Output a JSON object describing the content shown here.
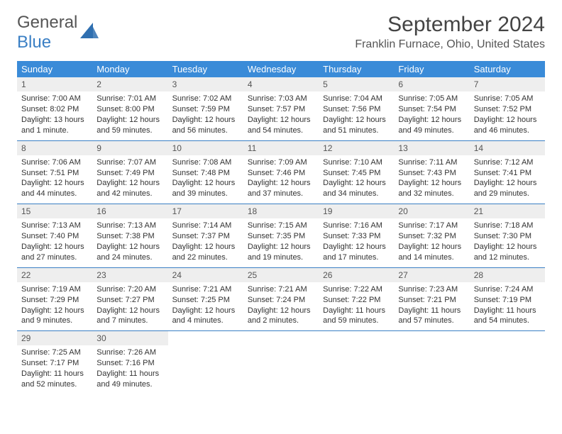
{
  "logo": {
    "top": "General",
    "bottom": "Blue",
    "icon_color": "#2f6fb0"
  },
  "header": {
    "title": "September 2024",
    "location": "Franklin Furnace, Ohio, United States"
  },
  "colors": {
    "header_bg": "#3a8bd8",
    "header_fg": "#ffffff",
    "daynum_bg": "#eeeeee",
    "border": "#3a7fc4"
  },
  "weekdays": [
    "Sunday",
    "Monday",
    "Tuesday",
    "Wednesday",
    "Thursday",
    "Friday",
    "Saturday"
  ],
  "weeks": [
    [
      {
        "num": "1",
        "sunrise": "Sunrise: 7:00 AM",
        "sunset": "Sunset: 8:02 PM",
        "daylight": "Daylight: 13 hours and 1 minute."
      },
      {
        "num": "2",
        "sunrise": "Sunrise: 7:01 AM",
        "sunset": "Sunset: 8:00 PM",
        "daylight": "Daylight: 12 hours and 59 minutes."
      },
      {
        "num": "3",
        "sunrise": "Sunrise: 7:02 AM",
        "sunset": "Sunset: 7:59 PM",
        "daylight": "Daylight: 12 hours and 56 minutes."
      },
      {
        "num": "4",
        "sunrise": "Sunrise: 7:03 AM",
        "sunset": "Sunset: 7:57 PM",
        "daylight": "Daylight: 12 hours and 54 minutes."
      },
      {
        "num": "5",
        "sunrise": "Sunrise: 7:04 AM",
        "sunset": "Sunset: 7:56 PM",
        "daylight": "Daylight: 12 hours and 51 minutes."
      },
      {
        "num": "6",
        "sunrise": "Sunrise: 7:05 AM",
        "sunset": "Sunset: 7:54 PM",
        "daylight": "Daylight: 12 hours and 49 minutes."
      },
      {
        "num": "7",
        "sunrise": "Sunrise: 7:05 AM",
        "sunset": "Sunset: 7:52 PM",
        "daylight": "Daylight: 12 hours and 46 minutes."
      }
    ],
    [
      {
        "num": "8",
        "sunrise": "Sunrise: 7:06 AM",
        "sunset": "Sunset: 7:51 PM",
        "daylight": "Daylight: 12 hours and 44 minutes."
      },
      {
        "num": "9",
        "sunrise": "Sunrise: 7:07 AM",
        "sunset": "Sunset: 7:49 PM",
        "daylight": "Daylight: 12 hours and 42 minutes."
      },
      {
        "num": "10",
        "sunrise": "Sunrise: 7:08 AM",
        "sunset": "Sunset: 7:48 PM",
        "daylight": "Daylight: 12 hours and 39 minutes."
      },
      {
        "num": "11",
        "sunrise": "Sunrise: 7:09 AM",
        "sunset": "Sunset: 7:46 PM",
        "daylight": "Daylight: 12 hours and 37 minutes."
      },
      {
        "num": "12",
        "sunrise": "Sunrise: 7:10 AM",
        "sunset": "Sunset: 7:45 PM",
        "daylight": "Daylight: 12 hours and 34 minutes."
      },
      {
        "num": "13",
        "sunrise": "Sunrise: 7:11 AM",
        "sunset": "Sunset: 7:43 PM",
        "daylight": "Daylight: 12 hours and 32 minutes."
      },
      {
        "num": "14",
        "sunrise": "Sunrise: 7:12 AM",
        "sunset": "Sunset: 7:41 PM",
        "daylight": "Daylight: 12 hours and 29 minutes."
      }
    ],
    [
      {
        "num": "15",
        "sunrise": "Sunrise: 7:13 AM",
        "sunset": "Sunset: 7:40 PM",
        "daylight": "Daylight: 12 hours and 27 minutes."
      },
      {
        "num": "16",
        "sunrise": "Sunrise: 7:13 AM",
        "sunset": "Sunset: 7:38 PM",
        "daylight": "Daylight: 12 hours and 24 minutes."
      },
      {
        "num": "17",
        "sunrise": "Sunrise: 7:14 AM",
        "sunset": "Sunset: 7:37 PM",
        "daylight": "Daylight: 12 hours and 22 minutes."
      },
      {
        "num": "18",
        "sunrise": "Sunrise: 7:15 AM",
        "sunset": "Sunset: 7:35 PM",
        "daylight": "Daylight: 12 hours and 19 minutes."
      },
      {
        "num": "19",
        "sunrise": "Sunrise: 7:16 AM",
        "sunset": "Sunset: 7:33 PM",
        "daylight": "Daylight: 12 hours and 17 minutes."
      },
      {
        "num": "20",
        "sunrise": "Sunrise: 7:17 AM",
        "sunset": "Sunset: 7:32 PM",
        "daylight": "Daylight: 12 hours and 14 minutes."
      },
      {
        "num": "21",
        "sunrise": "Sunrise: 7:18 AM",
        "sunset": "Sunset: 7:30 PM",
        "daylight": "Daylight: 12 hours and 12 minutes."
      }
    ],
    [
      {
        "num": "22",
        "sunrise": "Sunrise: 7:19 AM",
        "sunset": "Sunset: 7:29 PM",
        "daylight": "Daylight: 12 hours and 9 minutes."
      },
      {
        "num": "23",
        "sunrise": "Sunrise: 7:20 AM",
        "sunset": "Sunset: 7:27 PM",
        "daylight": "Daylight: 12 hours and 7 minutes."
      },
      {
        "num": "24",
        "sunrise": "Sunrise: 7:21 AM",
        "sunset": "Sunset: 7:25 PM",
        "daylight": "Daylight: 12 hours and 4 minutes."
      },
      {
        "num": "25",
        "sunrise": "Sunrise: 7:21 AM",
        "sunset": "Sunset: 7:24 PM",
        "daylight": "Daylight: 12 hours and 2 minutes."
      },
      {
        "num": "26",
        "sunrise": "Sunrise: 7:22 AM",
        "sunset": "Sunset: 7:22 PM",
        "daylight": "Daylight: 11 hours and 59 minutes."
      },
      {
        "num": "27",
        "sunrise": "Sunrise: 7:23 AM",
        "sunset": "Sunset: 7:21 PM",
        "daylight": "Daylight: 11 hours and 57 minutes."
      },
      {
        "num": "28",
        "sunrise": "Sunrise: 7:24 AM",
        "sunset": "Sunset: 7:19 PM",
        "daylight": "Daylight: 11 hours and 54 minutes."
      }
    ],
    [
      {
        "num": "29",
        "sunrise": "Sunrise: 7:25 AM",
        "sunset": "Sunset: 7:17 PM",
        "daylight": "Daylight: 11 hours and 52 minutes."
      },
      {
        "num": "30",
        "sunrise": "Sunrise: 7:26 AM",
        "sunset": "Sunset: 7:16 PM",
        "daylight": "Daylight: 11 hours and 49 minutes."
      },
      null,
      null,
      null,
      null,
      null
    ]
  ]
}
